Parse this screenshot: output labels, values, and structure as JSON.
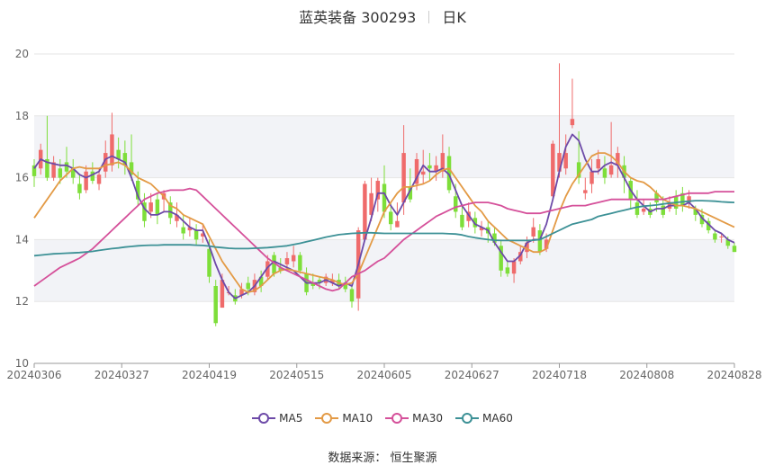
{
  "header": {
    "stock_name": "蓝英装备 300293",
    "period": "日K"
  },
  "source_text": "数据来源： 恒生聚源",
  "colors": {
    "up": "#ef6b6b",
    "down": "#7ede3a",
    "ma5": "#6d4aa8",
    "ma10": "#e39a45",
    "ma30": "#d5509a",
    "ma60": "#3d9196",
    "grid_band": "#f2f3f7"
  },
  "chart_data": {
    "type": "candlestick",
    "title": "蓝英装备 300293",
    "period": "日K",
    "ylim": [
      10,
      20
    ],
    "yticks": [
      10,
      12,
      14,
      16,
      18,
      20
    ],
    "xtick_labels": [
      "20240306",
      "20240327",
      "20240419",
      "20240515",
      "20240605",
      "20240627",
      "20240718",
      "20240808",
      "20240828"
    ],
    "legend": [
      "MA5",
      "MA10",
      "MA30",
      "MA60"
    ],
    "legend_position": "bottom",
    "candles": [
      [
        16.4,
        16.05,
        16.6,
        15.7
      ],
      [
        16.3,
        16.9,
        17.1,
        16.1
      ],
      [
        16.6,
        16.0,
        18.0,
        15.9
      ],
      [
        16.0,
        16.5,
        16.7,
        15.9
      ],
      [
        16.3,
        16.0,
        16.6,
        15.8
      ],
      [
        16.5,
        16.2,
        17.0,
        16.0
      ],
      [
        16.3,
        16.0,
        16.6,
        15.8
      ],
      [
        15.8,
        15.5,
        16.1,
        15.3
      ],
      [
        15.6,
        16.2,
        16.4,
        15.5
      ],
      [
        16.2,
        15.9,
        16.5,
        15.8
      ],
      [
        15.8,
        16.1,
        16.3,
        15.6
      ],
      [
        16.2,
        16.8,
        17.2,
        16.0
      ],
      [
        16.4,
        17.4,
        18.1,
        16.2
      ],
      [
        16.9,
        16.6,
        17.3,
        16.3
      ],
      [
        16.8,
        16.4,
        17.2,
        16.1
      ],
      [
        16.5,
        16.1,
        17.4,
        15.9
      ],
      [
        15.9,
        15.3,
        16.2,
        15.1
      ],
      [
        15.2,
        14.6,
        15.5,
        14.4
      ],
      [
        14.9,
        15.2,
        15.5,
        14.7
      ],
      [
        15.3,
        14.8,
        15.5,
        14.5
      ],
      [
        15.3,
        15.5,
        15.6,
        14.9
      ],
      [
        15.2,
        14.7,
        15.4,
        14.5
      ],
      [
        14.6,
        14.8,
        15.2,
        14.4
      ],
      [
        14.4,
        14.2,
        14.8,
        14.0
      ],
      [
        14.3,
        14.4,
        14.7,
        14.1
      ],
      [
        14.3,
        14.0,
        14.5,
        13.8
      ],
      [
        14.1,
        14.2,
        14.5,
        13.9
      ],
      [
        13.7,
        12.8,
        14.0,
        12.6
      ],
      [
        12.5,
        11.3,
        12.7,
        11.2
      ],
      [
        11.8,
        12.7,
        12.9,
        11.8
      ],
      [
        12.3,
        12.3,
        12.5,
        12.2
      ],
      [
        12.2,
        12.0,
        12.4,
        11.9
      ],
      [
        12.2,
        12.4,
        12.6,
        12.1
      ],
      [
        12.6,
        12.4,
        12.8,
        12.2
      ],
      [
        12.3,
        12.7,
        12.9,
        12.2
      ],
      [
        12.8,
        12.5,
        13.0,
        12.3
      ],
      [
        12.8,
        13.3,
        13.5,
        12.7
      ],
      [
        13.5,
        12.9,
        13.6,
        12.8
      ],
      [
        13.1,
        13.0,
        13.4,
        12.9
      ],
      [
        13.2,
        13.4,
        13.6,
        13.1
      ],
      [
        13.3,
        13.5,
        13.8,
        13.1
      ],
      [
        13.5,
        13.0,
        13.6,
        12.9
      ],
      [
        12.9,
        12.3,
        13.1,
        12.2
      ],
      [
        12.6,
        12.5,
        12.9,
        12.4
      ],
      [
        12.7,
        12.6,
        12.8,
        12.4
      ],
      [
        12.6,
        12.8,
        12.9,
        12.5
      ],
      [
        12.6,
        12.7,
        12.9,
        12.5
      ],
      [
        12.7,
        12.5,
        12.9,
        12.4
      ],
      [
        12.6,
        12.4,
        12.8,
        12.3
      ],
      [
        12.4,
        12.0,
        12.5,
        11.8
      ],
      [
        12.1,
        14.3,
        14.4,
        11.7
      ],
      [
        14.0,
        15.8,
        15.9,
        14.0
      ],
      [
        14.8,
        15.5,
        16.0,
        14.6
      ],
      [
        15.3,
        15.9,
        16.0,
        14.9
      ],
      [
        15.8,
        14.9,
        16.4,
        14.7
      ],
      [
        14.9,
        14.5,
        15.2,
        14.3
      ],
      [
        14.4,
        14.6,
        15.2,
        14.4
      ],
      [
        15.2,
        16.8,
        17.7,
        14.8
      ],
      [
        15.7,
        15.3,
        16.3,
        15.2
      ],
      [
        15.8,
        16.6,
        16.8,
        15.6
      ],
      [
        16.1,
        16.2,
        16.9,
        15.8
      ],
      [
        16.4,
        16.3,
        16.8,
        15.9
      ],
      [
        16.2,
        16.4,
        16.7,
        15.9
      ],
      [
        16.2,
        16.8,
        17.4,
        16.0
      ],
      [
        16.7,
        15.6,
        17.0,
        15.5
      ],
      [
        15.4,
        14.9,
        15.8,
        14.7
      ],
      [
        14.8,
        14.4,
        15.1,
        14.3
      ],
      [
        14.6,
        14.9,
        15.2,
        14.4
      ],
      [
        14.7,
        14.4,
        14.9,
        14.2
      ],
      [
        14.3,
        14.4,
        14.6,
        14.1
      ],
      [
        14.4,
        14.2,
        14.6,
        13.9
      ],
      [
        14.2,
        13.9,
        14.4,
        13.8
      ],
      [
        13.8,
        13.0,
        14.0,
        12.8
      ],
      [
        13.1,
        12.9,
        13.3,
        12.8
      ],
      [
        12.9,
        13.3,
        13.4,
        12.6
      ],
      [
        13.3,
        13.6,
        13.8,
        13.2
      ],
      [
        13.6,
        13.9,
        14.1,
        13.4
      ],
      [
        14.1,
        14.4,
        14.7,
        13.9
      ],
      [
        14.3,
        13.6,
        14.5,
        13.5
      ],
      [
        13.7,
        14.0,
        14.2,
        13.6
      ],
      [
        15.4,
        17.1,
        17.2,
        15.3
      ],
      [
        16.2,
        16.8,
        19.7,
        16.0
      ],
      [
        16.3,
        16.8,
        17.4,
        16.1
      ],
      [
        17.7,
        17.9,
        19.2,
        17.6
      ],
      [
        16.5,
        16.0,
        17.5,
        15.8
      ],
      [
        15.5,
        15.6,
        16.0,
        15.3
      ],
      [
        15.8,
        16.2,
        16.6,
        15.5
      ],
      [
        16.3,
        16.6,
        16.9,
        16.1
      ],
      [
        16.3,
        16.0,
        16.7,
        15.8
      ],
      [
        16.1,
        16.4,
        17.8,
        16.0
      ],
      [
        16.4,
        16.8,
        17.0,
        16.0
      ],
      [
        16.4,
        16.0,
        16.7,
        15.5
      ],
      [
        15.9,
        15.3,
        16.0,
        15.0
      ],
      [
        15.2,
        14.8,
        15.6,
        14.7
      ],
      [
        14.9,
        15.0,
        15.3,
        14.8
      ],
      [
        15.0,
        14.8,
        15.2,
        14.7
      ],
      [
        15.5,
        15.2,
        15.6,
        14.9
      ],
      [
        15.1,
        14.8,
        15.4,
        14.7
      ],
      [
        15.0,
        15.2,
        15.4,
        14.9
      ],
      [
        15.4,
        15.0,
        15.6,
        14.8
      ],
      [
        15.5,
        15.1,
        15.7,
        14.9
      ],
      [
        15.2,
        15.4,
        15.6,
        15.0
      ],
      [
        15.0,
        14.8,
        15.1,
        14.6
      ],
      [
        14.8,
        14.5,
        15.0,
        14.4
      ],
      [
        14.6,
        14.3,
        14.7,
        14.2
      ],
      [
        14.2,
        14.0,
        14.3,
        13.9
      ],
      [
        14.1,
        14.1,
        14.2,
        13.9
      ],
      [
        14.0,
        13.8,
        14.1,
        13.7
      ],
      [
        13.8,
        13.6,
        13.9,
        13.6
      ]
    ],
    "series": [
      {
        "name": "MA5",
        "values": [
          16.3,
          16.6,
          16.5,
          16.45,
          16.4,
          16.4,
          16.3,
          16.1,
          16.0,
          16.1,
          16.2,
          16.6,
          16.7,
          16.6,
          16.5,
          16.0,
          15.4,
          15.0,
          14.8,
          14.8,
          14.9,
          14.9,
          14.8,
          14.6,
          14.4,
          14.3,
          14.3,
          13.8,
          13.2,
          12.7,
          12.3,
          12.1,
          12.2,
          12.3,
          12.5,
          12.8,
          13.1,
          13.3,
          13.2,
          13.1,
          13.0,
          12.8,
          12.6,
          12.6,
          12.6,
          12.7,
          12.6,
          12.5,
          12.6,
          12.5,
          13.2,
          14.0,
          14.7,
          15.5,
          15.5,
          15.1,
          14.8,
          15.2,
          15.6,
          16.0,
          16.4,
          16.2,
          16.2,
          16.3,
          16.1,
          15.6,
          15.1,
          14.8,
          14.5,
          14.4,
          14.3,
          13.9,
          13.6,
          13.3,
          13.3,
          13.5,
          13.9,
          14.0,
          14.0,
          14.5,
          15.3,
          16.2,
          17.0,
          17.4,
          17.2,
          16.6,
          16.2,
          16.2,
          16.4,
          16.5,
          16.4,
          16.0,
          15.6,
          15.3,
          15.1,
          14.9,
          15.0,
          15.0,
          15.1,
          15.1,
          15.1,
          15.2,
          15.0,
          14.7,
          14.5,
          14.3,
          14.2,
          14.0,
          13.9
        ]
      },
      {
        "name": "MA10",
        "values": [
          14.7,
          15.0,
          15.3,
          15.6,
          15.9,
          16.1,
          16.3,
          16.35,
          16.3,
          16.3,
          16.3,
          16.4,
          16.45,
          16.5,
          16.4,
          16.2,
          16.0,
          15.9,
          15.8,
          15.6,
          15.4,
          15.1,
          15.0,
          14.8,
          14.7,
          14.6,
          14.5,
          14.1,
          13.7,
          13.3,
          13.0,
          12.7,
          12.4,
          12.3,
          12.35,
          12.5,
          12.7,
          12.9,
          13.0,
          13.05,
          13.0,
          12.95,
          12.9,
          12.85,
          12.8,
          12.75,
          12.7,
          12.6,
          12.55,
          12.6,
          12.9,
          13.4,
          13.9,
          14.4,
          14.9,
          15.2,
          15.5,
          15.7,
          15.7,
          15.75,
          15.8,
          15.9,
          16.1,
          16.25,
          16.3,
          16.0,
          15.7,
          15.4,
          15.1,
          14.9,
          14.6,
          14.4,
          14.2,
          14.0,
          13.9,
          13.8,
          13.7,
          13.6,
          13.6,
          13.7,
          14.3,
          14.9,
          15.4,
          15.8,
          16.1,
          16.4,
          16.7,
          16.8,
          16.8,
          16.7,
          16.5,
          16.2,
          16.0,
          15.9,
          15.85,
          15.7,
          15.5,
          15.3,
          15.2,
          15.1,
          15.1,
          15.05,
          15.0,
          14.9,
          14.8,
          14.7,
          14.6,
          14.5,
          14.4
        ]
      },
      {
        "name": "MA30",
        "values": [
          12.5,
          12.65,
          12.8,
          12.95,
          13.1,
          13.2,
          13.3,
          13.4,
          13.55,
          13.7,
          13.9,
          14.1,
          14.3,
          14.5,
          14.7,
          14.9,
          15.1,
          15.3,
          15.4,
          15.5,
          15.55,
          15.6,
          15.6,
          15.6,
          15.65,
          15.6,
          15.4,
          15.2,
          15.0,
          14.8,
          14.6,
          14.4,
          14.2,
          14.0,
          13.8,
          13.6,
          13.4,
          13.25,
          13.1,
          13.0,
          12.9,
          12.8,
          12.7,
          12.6,
          12.5,
          12.4,
          12.35,
          12.4,
          12.6,
          12.8,
          12.9,
          13.0,
          13.15,
          13.3,
          13.4,
          13.6,
          13.8,
          14.0,
          14.15,
          14.3,
          14.45,
          14.6,
          14.75,
          14.85,
          14.95,
          15.05,
          15.1,
          15.15,
          15.2,
          15.2,
          15.2,
          15.15,
          15.1,
          15.0,
          14.95,
          14.9,
          14.85,
          14.85,
          14.85,
          14.9,
          14.95,
          15.0,
          15.05,
          15.1,
          15.1,
          15.1,
          15.15,
          15.2,
          15.25,
          15.3,
          15.3,
          15.3,
          15.3,
          15.3,
          15.3,
          15.3,
          15.3,
          15.3,
          15.35,
          15.4,
          15.45,
          15.5,
          15.5,
          15.5,
          15.5,
          15.55,
          15.55,
          15.55,
          15.55
        ]
      },
      {
        "name": "MA60",
        "values": [
          13.48,
          13.5,
          13.52,
          13.54,
          13.55,
          13.56,
          13.57,
          13.58,
          13.6,
          13.62,
          13.65,
          13.68,
          13.71,
          13.73,
          13.76,
          13.78,
          13.8,
          13.81,
          13.82,
          13.82,
          13.83,
          13.83,
          13.83,
          13.83,
          13.83,
          13.82,
          13.81,
          13.79,
          13.76,
          13.74,
          13.72,
          13.71,
          13.71,
          13.71,
          13.72,
          13.73,
          13.74,
          13.76,
          13.78,
          13.8,
          13.84,
          13.88,
          13.93,
          13.98,
          14.03,
          14.08,
          14.12,
          14.16,
          14.18,
          14.2,
          14.21,
          14.22,
          14.22,
          14.21,
          14.2,
          14.2,
          14.2,
          14.2,
          14.2,
          14.2,
          14.2,
          14.2,
          14.2,
          14.2,
          14.19,
          14.18,
          14.15,
          14.1,
          14.06,
          14.03,
          14.0,
          13.98,
          13.97,
          13.97,
          13.97,
          13.97,
          13.97,
          13.98,
          14.0,
          14.1,
          14.2,
          14.3,
          14.4,
          14.5,
          14.55,
          14.6,
          14.65,
          14.75,
          14.8,
          14.85,
          14.9,
          14.95,
          15.0,
          15.05,
          15.08,
          15.1,
          15.12,
          15.15,
          15.18,
          15.2,
          15.22,
          15.24,
          15.26,
          15.26,
          15.25,
          15.24,
          15.22,
          15.21,
          15.2
        ]
      }
    ]
  }
}
